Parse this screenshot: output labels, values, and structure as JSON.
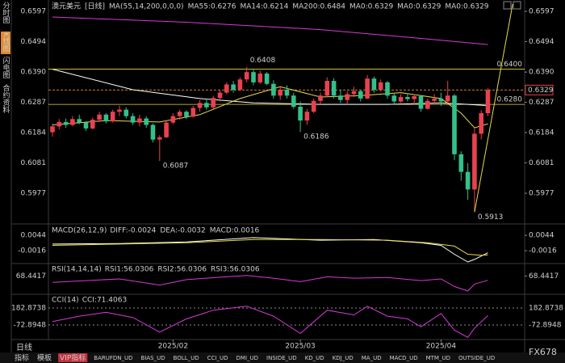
{
  "chart_data": {
    "type": "candlestick",
    "title": "澳元美元",
    "period": "[日线]",
    "ma_settings": "MA(55,14,200,0,0,0)",
    "legend": [
      {
        "label": "MA55:0.6276",
        "color": "#ffffff"
      },
      {
        "label": "MA14:0.6214",
        "color": "#e8d94a"
      },
      {
        "label": "MA200:0.6484",
        "color": "#d63ad6"
      },
      {
        "label": "MA0:0.6329",
        "color": "#3fcf4a"
      },
      {
        "label": "MA0:0.6329",
        "color": "#9a9a9a"
      },
      {
        "label": "MA0:0.6329",
        "color": "#e8424e"
      }
    ],
    "categories": [
      null,
      null,
      null,
      null,
      null,
      null,
      null,
      null,
      null,
      null,
      null,
      null,
      null,
      null,
      null,
      null,
      null,
      null,
      "2025/02",
      null,
      null,
      null,
      null,
      null,
      null,
      null,
      null,
      null,
      null,
      null,
      null,
      null,
      null,
      null,
      null,
      null,
      null,
      "2025/03",
      null,
      null,
      null,
      null,
      null,
      null,
      null,
      null,
      null,
      null,
      null,
      null,
      null,
      null,
      null,
      null,
      null,
      null,
      null,
      null,
      "2025/04",
      null,
      null,
      null,
      null,
      null,
      null,
      null
    ],
    "open": [
      0.6185,
      0.6205,
      0.622,
      0.621,
      0.623,
      0.6218,
      0.6198,
      0.6228,
      0.6245,
      0.6222,
      0.6255,
      0.6262,
      0.624,
      0.6218,
      0.6232,
      0.621,
      0.616,
      0.6168,
      0.6218,
      0.624,
      0.6255,
      0.6238,
      0.6268,
      0.6285,
      0.627,
      0.6302,
      0.632,
      0.6348,
      0.633,
      0.6365,
      0.639,
      0.6355,
      0.6385,
      0.635,
      0.631,
      0.633,
      0.631,
      0.6272,
      0.6225,
      0.6255,
      0.6292,
      0.631,
      0.636,
      0.631,
      0.6295,
      0.6315,
      0.6325,
      0.63,
      0.6368,
      0.633,
      0.6355,
      0.631,
      0.629,
      0.6305,
      0.6298,
      0.6308,
      0.6265,
      0.6292,
      0.63,
      0.629,
      0.631,
      0.611,
      0.605,
      0.599,
      0.618,
      0.625
    ],
    "high": [
      0.6215,
      0.623,
      0.6232,
      0.624,
      0.6245,
      0.6222,
      0.6235,
      0.6255,
      0.625,
      0.6262,
      0.6275,
      0.627,
      0.625,
      0.6245,
      0.624,
      0.6215,
      0.6175,
      0.6225,
      0.625,
      0.6262,
      0.626,
      0.6275,
      0.6295,
      0.63,
      0.631,
      0.633,
      0.6355,
      0.636,
      0.6372,
      0.6408,
      0.64,
      0.6395,
      0.639,
      0.6362,
      0.634,
      0.6345,
      0.632,
      0.629,
      0.6265,
      0.63,
      0.632,
      0.6372,
      0.637,
      0.633,
      0.6325,
      0.634,
      0.633,
      0.638,
      0.6375,
      0.6365,
      0.636,
      0.632,
      0.6315,
      0.6318,
      0.6315,
      0.6312,
      0.63,
      0.6315,
      0.632,
      0.636,
      0.6315,
      0.612,
      0.608,
      0.62,
      0.626,
      0.6335
    ],
    "low": [
      0.617,
      0.6195,
      0.62,
      0.6205,
      0.6212,
      0.619,
      0.6195,
      0.622,
      0.6215,
      0.6218,
      0.624,
      0.6232,
      0.621,
      0.6205,
      0.62,
      0.615,
      0.6087,
      0.6165,
      0.6212,
      0.6228,
      0.623,
      0.6235,
      0.6255,
      0.6262,
      0.6265,
      0.629,
      0.6315,
      0.632,
      0.6325,
      0.6355,
      0.6345,
      0.635,
      0.6345,
      0.63,
      0.6295,
      0.63,
      0.6265,
      0.6186,
      0.621,
      0.625,
      0.628,
      0.6305,
      0.63,
      0.6285,
      0.628,
      0.6305,
      0.629,
      0.6298,
      0.632,
      0.6325,
      0.63,
      0.628,
      0.6285,
      0.629,
      0.628,
      0.6255,
      0.6262,
      0.628,
      0.6275,
      0.6285,
      0.609,
      0.602,
      0.5955,
      0.5913,
      0.616,
      0.624
    ],
    "close": [
      0.6205,
      0.622,
      0.621,
      0.623,
      0.6218,
      0.6198,
      0.6228,
      0.6245,
      0.6222,
      0.6255,
      0.6262,
      0.624,
      0.6218,
      0.6232,
      0.621,
      0.616,
      0.6168,
      0.6218,
      0.624,
      0.6255,
      0.6238,
      0.6268,
      0.6285,
      0.627,
      0.6302,
      0.632,
      0.6348,
      0.633,
      0.6365,
      0.639,
      0.6355,
      0.6385,
      0.635,
      0.631,
      0.633,
      0.631,
      0.6272,
      0.6225,
      0.6255,
      0.6292,
      0.631,
      0.636,
      0.631,
      0.6295,
      0.6315,
      0.6325,
      0.63,
      0.6368,
      0.633,
      0.6355,
      0.631,
      0.629,
      0.6305,
      0.6298,
      0.6308,
      0.6265,
      0.6292,
      0.63,
      0.629,
      0.631,
      0.611,
      0.605,
      0.599,
      0.618,
      0.625,
      0.6329
    ],
    "up_color": "#e8424e",
    "down_color": "#33c08a",
    "ylim": [
      0.5878,
      0.6622
    ],
    "yticks": [
      0.6597,
      0.6494,
      0.639,
      0.6287,
      0.6184,
      0.6081,
      0.5977
    ],
    "yticks_labels": [
      "0.6597",
      "0.6494",
      "0.6390",
      "0.6287",
      "0.6184",
      "0.6081",
      "0.5977"
    ],
    "lines": [
      {
        "color": "#ffffff",
        "x": [
          0,
          12,
          22,
          30,
          40,
          50,
          58,
          62,
          65
        ],
        "values": [
          0.64,
          0.633,
          0.63,
          0.6285,
          0.628,
          0.628,
          0.6285,
          0.628,
          0.6276
        ]
      },
      {
        "color": "#e8d94a",
        "x": [
          0,
          8,
          16,
          22,
          28,
          34,
          40,
          46,
          52,
          58,
          61,
          63,
          65
        ],
        "values": [
          0.621,
          0.6225,
          0.622,
          0.6245,
          0.63,
          0.634,
          0.6305,
          0.631,
          0.632,
          0.63,
          0.625,
          0.62,
          0.6214
        ]
      },
      {
        "color": "#d63ad6",
        "x": [
          0,
          20,
          40,
          55,
          65
        ],
        "values": [
          0.6578,
          0.656,
          0.6535,
          0.6505,
          0.6484
        ]
      }
    ],
    "levels": [
      {
        "value": 0.64,
        "label": "0.6400",
        "color": "#e8d94a"
      },
      {
        "value": 0.628,
        "label": "0.6280",
        "color": "#e8d94a"
      }
    ],
    "current": {
      "value": 0.6329,
      "label": "0.6329",
      "color": "#e8424e"
    },
    "trendline": {
      "color": "#e8d94a",
      "x": [
        63,
        68.7
      ],
      "values": [
        0.5913,
        0.6622
      ]
    },
    "annotations": [
      {
        "text": "0.6408",
        "x": 29,
        "value": 0.6408,
        "color": "#ff8a8a"
      },
      {
        "text": "0.6186",
        "x": 37,
        "value": 0.6186,
        "color": "#7fe0a8"
      },
      {
        "text": "0.6087",
        "x": 16,
        "value": 0.6087,
        "color": "#7fe0a8"
      },
      {
        "text": "0.5913",
        "x": 63,
        "value": 0.5913,
        "color": "#7fe0a8"
      }
    ],
    "panels": [
      {
        "title": "MACD(26,12,9)",
        "legend": [
          {
            "label": "DIFF:-0.0024",
            "color": "#ffffff"
          },
          {
            "label": "DEA:-0.0032",
            "color": "#e8d94a"
          },
          {
            "label": "MACD:0.0016",
            "color": "#d63ad6"
          }
        ],
        "ylim": [
          -0.0063,
          0.0079
        ],
        "yticks": [
          0.0044,
          -0.0016
        ],
        "dashed": false,
        "lines": [
          {
            "color": "#ffffff",
            "x": [
              0,
              10,
              20,
              30,
              40,
              48,
              55,
              58,
              60,
              62,
              63,
              65
            ],
            "values": [
              0.001,
              0.0012,
              0.0018,
              0.0035,
              0.0025,
              0.0028,
              0.0015,
              0.0005,
              -0.003,
              -0.006,
              -0.005,
              -0.0024
            ]
          },
          {
            "color": "#e8d94a",
            "x": [
              0,
              10,
              20,
              30,
              40,
              50,
              56,
              60,
              62,
              64,
              65
            ],
            "values": [
              0.0005,
              0.001,
              0.0015,
              0.0028,
              0.0028,
              0.0025,
              0.0015,
              0.0002,
              -0.003,
              -0.0034,
              -0.0032
            ]
          }
        ]
      },
      {
        "title": "RSI(14,14,14)",
        "legend": [
          {
            "label": "RSI1:56.0306",
            "color": "#ffffff"
          },
          {
            "label": "RSI2:56.0306",
            "color": "#e8d94a"
          },
          {
            "label": "RSI3:56.0306",
            "color": "#d63ad6"
          }
        ],
        "ylim": [
          20,
          100
        ],
        "yticks": [
          68.4417
        ],
        "dashed": false,
        "lines": [
          {
            "color": "#d63ad6",
            "x": [
              0,
              5,
              10,
              16,
              20,
              25,
              29,
              33,
              37,
              41,
              45,
              50,
              55,
              58,
              60,
              62,
              63,
              65
            ],
            "values": [
              50,
              55,
              60,
              42,
              58,
              65,
              70,
              62,
              52,
              66,
              62,
              64,
              55,
              60,
              38,
              25,
              45,
              56.0306
            ]
          }
        ]
      },
      {
        "title": "CCI(14)",
        "legend": [
          {
            "label": "CCI:71.4063",
            "color": "#d63ad6"
          }
        ],
        "ylim": [
          -268,
          366
        ],
        "yticks": [
          182.8738,
          -72.8948
        ],
        "dashed": true,
        "lines": [
          {
            "color": "#d63ad6",
            "x": [
              0,
              4,
              8,
              12,
              16,
              20,
              24,
              29,
              33,
              37,
              41,
              45,
              47,
              50,
              53,
              55,
              58,
              60,
              62,
              63,
              65
            ],
            "values": [
              -20,
              60,
              120,
              40,
              -180,
              20,
              150,
              210,
              60,
              -200,
              150,
              80,
              210,
              60,
              20,
              -100,
              100,
              -150,
              -260,
              -120,
              71.4063
            ]
          }
        ]
      }
    ]
  },
  "sidebar": [
    "分时图",
    "K线图",
    "闪电图",
    "合约资料"
  ],
  "footer": {
    "period": "日线",
    "brand": "FX678"
  },
  "toolbar": [
    "指标",
    "模板",
    "VIP指标",
    "BARUFDN_UD",
    "BIAS_UD",
    "BOLL_UD",
    "CCI_UD",
    "DMI_UD",
    "INSIDE_UD",
    "KD_UD",
    "KDJ_UD",
    "MA_UD",
    "MACD_UD",
    "MTM_UD",
    "OUTSIDE_UD"
  ]
}
